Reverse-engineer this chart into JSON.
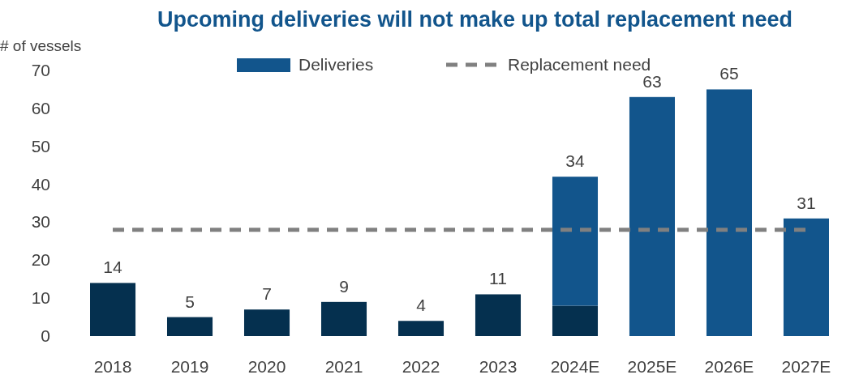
{
  "chart_data": {
    "type": "bar",
    "title": "Upcoming deliveries will not make up total replacement need",
    "ylabel": "# of vessels",
    "categories": [
      "2018",
      "2019",
      "2020",
      "2021",
      "2022",
      "2023",
      "2024E",
      "2025E",
      "2026E",
      "2027E"
    ],
    "stacked": true,
    "ylim": [
      0,
      70
    ],
    "yticks": [
      0,
      10,
      20,
      30,
      40,
      50,
      60,
      70
    ],
    "legend": "top",
    "grid": false,
    "series": [
      {
        "color": "#05304f",
        "values": [
          14,
          5,
          7,
          9,
          4,
          11,
          8,
          null,
          null,
          null
        ],
        "value_labels": [
          "14",
          "5",
          "7",
          "9",
          "4",
          "11",
          null,
          null,
          null,
          null
        ]
      },
      {
        "name": "Deliveries",
        "color": "#12558c",
        "values": [
          null,
          null,
          null,
          null,
          null,
          null,
          34,
          63,
          65,
          31
        ],
        "value_labels": [
          null,
          null,
          null,
          null,
          null,
          null,
          "34",
          "63",
          "65",
          "31"
        ]
      },
      {
        "name": "Replacement need",
        "type": "line",
        "color": "#808080",
        "line_style": "dashed",
        "values": [
          28,
          28,
          28,
          28,
          28,
          28,
          28,
          28,
          28,
          28
        ]
      }
    ]
  }
}
